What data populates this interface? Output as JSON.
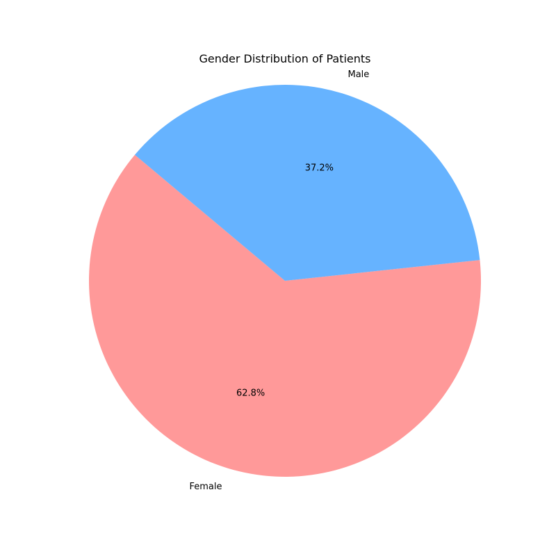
{
  "chart_data": {
    "type": "pie",
    "title": "Gender Distribution of Patients",
    "labels": [
      "Female",
      "Male"
    ],
    "values": [
      62.8,
      37.2
    ],
    "percent_labels": [
      "62.8%",
      "37.2%"
    ],
    "colors": [
      "#ff9999",
      "#66b3ff"
    ],
    "start_angle_deg": 140,
    "counterclockwise": true
  }
}
